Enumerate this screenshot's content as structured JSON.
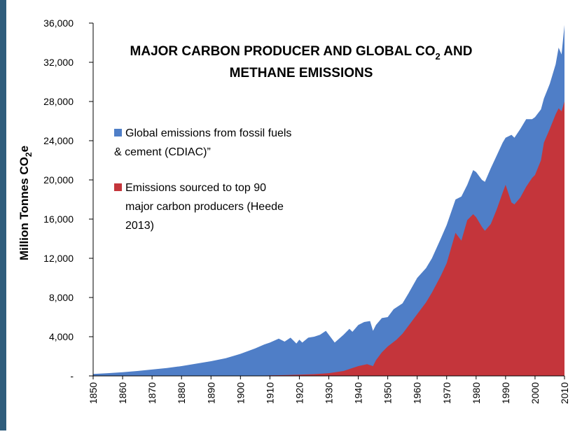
{
  "colors": {
    "global": "#4f7ec7",
    "producers": "#c4353b",
    "axis": "#000000",
    "frame": "#2f5d7c"
  },
  "chart_data": {
    "type": "area",
    "title_line1": "MAJOR CARBON PRODUCER AND GLOBAL CO",
    "title_sub": "2",
    "title_line1_end": " AND",
    "title_line2": "METHANE EMISSIONS",
    "ylabel": "Million Tonnes CO",
    "ylabel_sub": "2",
    "ylabel_end": "e",
    "xlim": [
      1850,
      2010
    ],
    "ylim": [
      0,
      36000
    ],
    "y_ticks": [
      0,
      4000,
      8000,
      12000,
      16000,
      20000,
      24000,
      28000,
      32000,
      36000
    ],
    "y_tick_labels": [
      "-",
      "4,000",
      "8,000",
      "12,000",
      "16,000",
      "20,000",
      "24,000",
      "28,000",
      "32,000",
      "36,000"
    ],
    "x_ticks": [
      1850,
      1860,
      1870,
      1880,
      1890,
      1900,
      1910,
      1920,
      1930,
      1940,
      1950,
      1960,
      1970,
      1980,
      1990,
      2000,
      2010
    ],
    "x_tick_labels": [
      "1850",
      "1860",
      "1870",
      "1880",
      "1890",
      "1900",
      "1910",
      "1920",
      "1930",
      "1940",
      "1950",
      "1960",
      "1970",
      "1980",
      "1990",
      "2000",
      "2010"
    ],
    "legend": [
      {
        "lines": [
          "Global emissions from fossil fuels",
          "& cement (CDIAC)”"
        ]
      },
      {
        "lines": [
          "Emissions sourced  to top 90",
          "major carbon producers (Heede",
          "2013)"
        ]
      }
    ],
    "series": [
      {
        "x": [
          1850,
          1855,
          1860,
          1865,
          1870,
          1875,
          1880,
          1885,
          1890,
          1895,
          1900,
          1905,
          1908,
          1910,
          1913,
          1915,
          1917,
          1919,
          1920,
          1921,
          1923,
          1925,
          1927,
          1929,
          1931,
          1932,
          1935,
          1937,
          1938,
          1940,
          1942,
          1944,
          1945,
          1946,
          1948,
          1950,
          1952,
          1955,
          1957,
          1960,
          1963,
          1965,
          1968,
          1970,
          1973,
          1975,
          1977,
          1979,
          1980,
          1982,
          1983,
          1985,
          1987,
          1989,
          1990,
          1992,
          1993,
          1995,
          1997,
          1999,
          2000,
          2002,
          2003,
          2005,
          2007,
          2008,
          2009,
          2010
        ],
        "values": [
          200,
          280,
          380,
          500,
          650,
          800,
          1000,
          1250,
          1500,
          1800,
          2250,
          2800,
          3200,
          3400,
          3800,
          3500,
          3900,
          3300,
          3700,
          3400,
          3900,
          4000,
          4200,
          4600,
          3800,
          3400,
          4200,
          4800,
          4500,
          5200,
          5500,
          5600,
          4600,
          5200,
          5900,
          6000,
          6800,
          7400,
          8400,
          10000,
          11000,
          12000,
          14000,
          15400,
          18000,
          18300,
          19500,
          21000,
          20800,
          20000,
          19800,
          21200,
          22500,
          23800,
          24300,
          24600,
          24300,
          25200,
          26200,
          26200,
          26400,
          27200,
          28300,
          29800,
          31800,
          33500,
          32800,
          35800
        ]
      },
      {
        "x": [
          1850,
          1870,
          1890,
          1900,
          1905,
          1910,
          1915,
          1920,
          1925,
          1930,
          1935,
          1938,
          1940,
          1943,
          1945,
          1946,
          1948,
          1950,
          1953,
          1955,
          1957,
          1960,
          1963,
          1965,
          1968,
          1970,
          1973,
          1975,
          1977,
          1979,
          1980,
          1982,
          1983,
          1985,
          1987,
          1989,
          1990,
          1992,
          1993,
          1995,
          1997,
          1999,
          2000,
          2002,
          2003,
          2005,
          2007,
          2008,
          2009,
          2010
        ],
        "values": [
          0,
          0,
          0,
          0,
          0,
          50,
          80,
          120,
          180,
          280,
          500,
          800,
          1000,
          1200,
          1000,
          1600,
          2400,
          3000,
          3700,
          4300,
          5100,
          6300,
          7500,
          8500,
          10200,
          11500,
          14600,
          13800,
          15900,
          16500,
          16200,
          15200,
          14800,
          15500,
          17000,
          18700,
          19500,
          17700,
          17500,
          18200,
          19300,
          20200,
          20500,
          22000,
          23800,
          25200,
          26700,
          27300,
          27000,
          28000
        ]
      }
    ]
  }
}
